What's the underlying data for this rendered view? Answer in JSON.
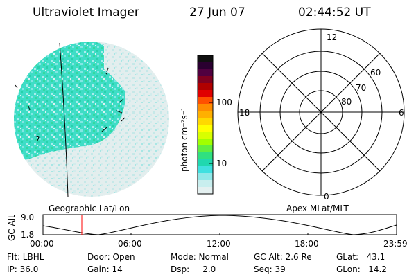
{
  "header": {
    "title": "Ultraviolet Imager",
    "date": "27 Jun 07",
    "time": "02:44:52 UT"
  },
  "colorbar": {
    "unit_label": "photon cm⁻²s⁻¹",
    "ticks": [
      "100",
      "10"
    ],
    "colors": [
      "#101010",
      "#2a0030",
      "#500040",
      "#800020",
      "#b00000",
      "#e00000",
      "#ff5000",
      "#ff8c00",
      "#ffb000",
      "#ffd800",
      "#ffff00",
      "#d8ff00",
      "#a0ff00",
      "#60ee40",
      "#30e080",
      "#20d8b0",
      "#40e0e0",
      "#90e8e8",
      "#c8eeee",
      "#e4f0f0"
    ]
  },
  "polar_plot": {
    "mlt_labels": {
      "top": "12",
      "left": "18",
      "right": "6",
      "bottom": "0"
    },
    "lat_labels": [
      "60",
      "70",
      "80"
    ]
  },
  "labels": {
    "geographic": "Geographic Lat/Lon",
    "apex": "Apex MLat/MLT"
  },
  "altitude_plot": {
    "axis_label": "GC Alt",
    "y_max": "9.0",
    "y_min": "1.8",
    "x_ticks": [
      "00:00",
      "06:00",
      "12:00",
      "18:00",
      "23:59"
    ]
  },
  "info": {
    "filter": "Flt: LBHL",
    "ip": "IP: 36.0",
    "door": "Door: Open",
    "gain": "Gain: 14",
    "mode": "Mode: Normal",
    "dsp": "Dsp:     2.0",
    "gc_alt": "GC Alt: 2.6 Re",
    "seq": "Seq: 39",
    "glat": "GLat:   43.1",
    "glon": "GLon:   14.2"
  }
}
